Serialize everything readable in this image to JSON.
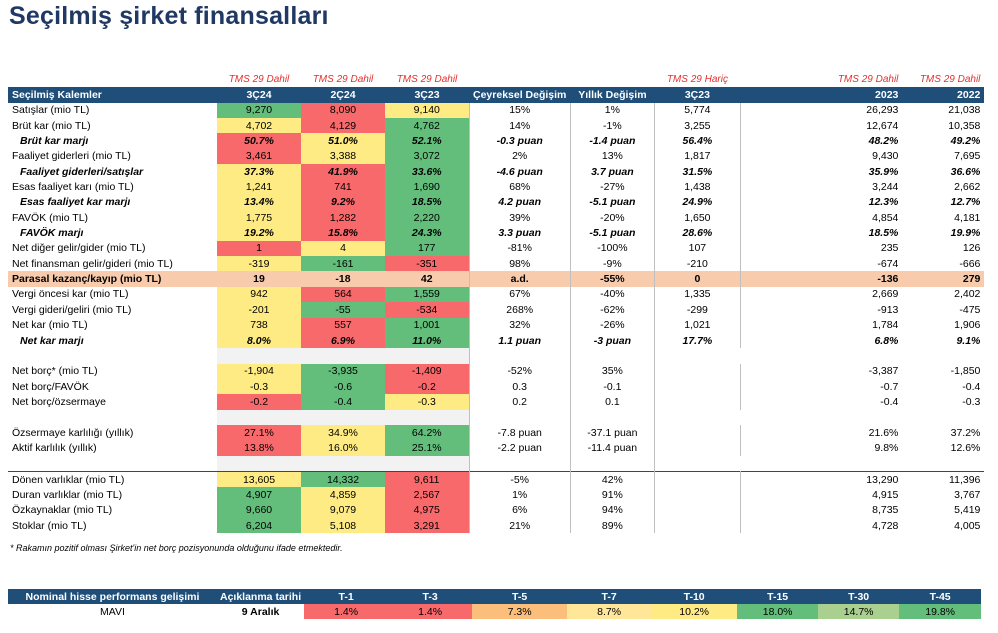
{
  "title": "Seçilmiş şirket finansalları",
  "tms_labels": {
    "q3_24": "TMS 29 Dahil",
    "q2_24": "TMS 29 Dahil",
    "q3_23": "TMS 29 Dahil",
    "q3_23_haric": "TMS 29 Hariç",
    "y2023": "TMS 29 Dahil",
    "y2022": "TMS 29 Dahil"
  },
  "headers": [
    "Seçilmiş Kalemler",
    "3Ç24",
    "2Ç24",
    "3Ç23",
    "Çeyreksel Değişim",
    "Yıllık Değişim",
    "3Ç23",
    "2023",
    "2022"
  ],
  "rows": [
    {
      "label": "Satışlar (mio TL)",
      "v": [
        "9,270",
        "8,090",
        "9,140"
      ],
      "cls": [
        "g",
        "r",
        "y"
      ],
      "cd": "15%",
      "yd": "1%",
      "h": "5,774",
      "y23": "26,293",
      "y22": "21,038"
    },
    {
      "label": "Brüt kar (mio TL)",
      "v": [
        "4,702",
        "4,129",
        "4,762"
      ],
      "cls": [
        "y",
        "r",
        "g"
      ],
      "cd": "14%",
      "yd": "-1%",
      "h": "3,255",
      "y23": "12,674",
      "y22": "10,358"
    },
    {
      "label": "Brüt kar marjı",
      "v": [
        "50.7%",
        "51.0%",
        "52.1%"
      ],
      "cls": [
        "r",
        "y",
        "g"
      ],
      "cd": "-0.3 puan",
      "yd": "-1.4 puan",
      "h": "56.4%",
      "y23": "48.2%",
      "y22": "49.2%",
      "style": "bi"
    },
    {
      "label": "Faaliyet giderleri (mio TL)",
      "v": [
        "3,461",
        "3,388",
        "3,072"
      ],
      "cls": [
        "r",
        "y",
        "g"
      ],
      "cd": "2%",
      "yd": "13%",
      "h": "1,817",
      "y23": "9,430",
      "y22": "7,695"
    },
    {
      "label": "Faaliyet giderleri/satışlar",
      "v": [
        "37.3%",
        "41.9%",
        "33.6%"
      ],
      "cls": [
        "y",
        "r",
        "g"
      ],
      "cd": "-4.6 puan",
      "yd": "3.7 puan",
      "h": "31.5%",
      "y23": "35.9%",
      "y22": "36.6%",
      "style": "bi"
    },
    {
      "label": "Esas faaliyet karı (mio TL)",
      "v": [
        "1,241",
        "741",
        "1,690"
      ],
      "cls": [
        "y",
        "r",
        "g"
      ],
      "cd": "68%",
      "yd": "-27%",
      "h": "1,438",
      "y23": "3,244",
      "y22": "2,662"
    },
    {
      "label": "Esas faaliyet kar marjı",
      "v": [
        "13.4%",
        "9.2%",
        "18.5%"
      ],
      "cls": [
        "y",
        "r",
        "g"
      ],
      "cd": "4.2 puan",
      "yd": "-5.1 puan",
      "h": "24.9%",
      "y23": "12.3%",
      "y22": "12.7%",
      "style": "bi"
    },
    {
      "label": "FAVÖK (mio TL)",
      "v": [
        "1,775",
        "1,282",
        "2,220"
      ],
      "cls": [
        "y",
        "r",
        "g"
      ],
      "cd": "39%",
      "yd": "-20%",
      "h": "1,650",
      "y23": "4,854",
      "y22": "4,181"
    },
    {
      "label": "FAVÖK marjı",
      "v": [
        "19.2%",
        "15.8%",
        "24.3%"
      ],
      "cls": [
        "y",
        "r",
        "g"
      ],
      "cd": "3.3 puan",
      "yd": "-5.1 puan",
      "h": "28.6%",
      "y23": "18.5%",
      "y22": "19.9%",
      "style": "bi"
    },
    {
      "label": "Net diğer gelir/gider (mio TL)",
      "v": [
        "1",
        "4",
        "177"
      ],
      "cls": [
        "r",
        "y",
        "g"
      ],
      "cd": "-81%",
      "yd": "-100%",
      "h": "107",
      "y23": "235",
      "y22": "126"
    },
    {
      "label": "Net finansman gelir/gideri (mio TL)",
      "v": [
        "-319",
        "-161",
        "-351"
      ],
      "cls": [
        "y",
        "g",
        "r"
      ],
      "cd": "98%",
      "yd": "-9%",
      "h": "-210",
      "y23": "-674",
      "y22": "-666"
    },
    {
      "label": "Parasal kazanç/kayıp (mio TL)",
      "v": [
        "19",
        "-18",
        "42"
      ],
      "cls": [
        "y",
        "r",
        "g"
      ],
      "cd": "a.d.",
      "yd": "-55%",
      "h": "0",
      "y23": "-136",
      "y22": "279",
      "style": "hl"
    },
    {
      "label": "Vergi öncesi kar (mio TL)",
      "v": [
        "942",
        "564",
        "1,559"
      ],
      "cls": [
        "y",
        "r",
        "g"
      ],
      "cd": "67%",
      "yd": "-40%",
      "h": "1,335",
      "y23": "2,669",
      "y22": "2,402"
    },
    {
      "label": "Vergi gideri/geliri (mio TL)",
      "v": [
        "-201",
        "-55",
        "-534"
      ],
      "cls": [
        "y",
        "g",
        "r"
      ],
      "cd": "268%",
      "yd": "-62%",
      "h": "-299",
      "y23": "-913",
      "y22": "-475"
    },
    {
      "label": "Net kar (mio TL)",
      "v": [
        "738",
        "557",
        "1,001"
      ],
      "cls": [
        "y",
        "r",
        "g"
      ],
      "cd": "32%",
      "yd": "-26%",
      "h": "1,021",
      "y23": "1,784",
      "y22": "1,906"
    },
    {
      "label": "Net kar marjı",
      "v": [
        "8.0%",
        "6.9%",
        "11.0%"
      ],
      "cls": [
        "y",
        "r",
        "g"
      ],
      "cd": "1.1 puan",
      "yd": "-3 puan",
      "h": "17.7%",
      "y23": "6.8%",
      "y22": "9.1%",
      "style": "bi"
    },
    {
      "blank": true
    },
    {
      "label": "Net borç* (mio TL)",
      "v": [
        "-1,904",
        "-3,935",
        "-1,409"
      ],
      "cls": [
        "y",
        "g",
        "r"
      ],
      "cd": "-52%",
      "yd": "35%",
      "h": "",
      "y23": "-3,387",
      "y22": "-1,850"
    },
    {
      "label": "Net borç/FAVÖK",
      "v": [
        "-0.3",
        "-0.6",
        "-0.2"
      ],
      "cls": [
        "y",
        "g",
        "r"
      ],
      "cd": "0.3",
      "yd": "-0.1",
      "h": "",
      "y23": "-0.7",
      "y22": "-0.4"
    },
    {
      "label": "Net borç/özsermaye",
      "v": [
        "-0.2",
        "-0.4",
        "-0.3"
      ],
      "cls": [
        "r",
        "g",
        "y"
      ],
      "cd": "0.2",
      "yd": "0.1",
      "h": "",
      "y23": "-0.4",
      "y22": "-0.3"
    },
    {
      "blank": true
    },
    {
      "label": "Özsermaye karlılığı (yıllık)",
      "v": [
        "27.1%",
        "34.9%",
        "64.2%"
      ],
      "cls": [
        "r",
        "y",
        "g"
      ],
      "cd": "-7.8 puan",
      "yd": "-37.1 puan",
      "h": "",
      "y23": "21.6%",
      "y22": "37.2%"
    },
    {
      "label": "Aktif karlılık (yıllık)",
      "v": [
        "13.8%",
        "16.0%",
        "25.1%"
      ],
      "cls": [
        "r",
        "y",
        "g"
      ],
      "cd": "-2.2 puan",
      "yd": "-11.4 puan",
      "h": "",
      "y23": "9.8%",
      "y22": "12.6%"
    },
    {
      "blank": true
    },
    {
      "label": "Dönen varlıklar (mio TL)",
      "v": [
        "13,605",
        "14,332",
        "9,611"
      ],
      "cls": [
        "y",
        "g",
        "r"
      ],
      "cd": "-5%",
      "yd": "42%",
      "h": "",
      "y23": "13,290",
      "y22": "11,396",
      "style": "bar"
    },
    {
      "label": "Duran varlıklar (mio TL)",
      "v": [
        "4,907",
        "4,859",
        "2,567"
      ],
      "cls": [
        "g",
        "y",
        "r"
      ],
      "cd": "1%",
      "yd": "91%",
      "h": "",
      "y23": "4,915",
      "y22": "3,767"
    },
    {
      "label": "Özkaynaklar (mio TL)",
      "v": [
        "9,660",
        "9,079",
        "4,975"
      ],
      "cls": [
        "g",
        "y",
        "r"
      ],
      "cd": "6%",
      "yd": "94%",
      "h": "",
      "y23": "8,735",
      "y22": "5,419"
    },
    {
      "label": "Stoklar (mio TL)",
      "v": [
        "6,204",
        "5,108",
        "3,291"
      ],
      "cls": [
        "g",
        "y",
        "r"
      ],
      "cd": "21%",
      "yd": "89%",
      "h": "",
      "y23": "4,728",
      "y22": "4,005"
    }
  ],
  "note": "* Rakamın pozitif olması Şirket'in net borç pozisyonunda olduğunu ifade etmektedir.",
  "perf": {
    "headers": [
      "Nominal hisse performans gelişimi",
      "Açıklanma tarihi",
      "T-1",
      "T-3",
      "T-5",
      "T-7",
      "T-10",
      "T-15",
      "T-30",
      "T-45"
    ],
    "ticker": "MAVI",
    "date": "9 Aralık",
    "values": [
      "1.4%",
      "1.4%",
      "7.3%",
      "8.7%",
      "10.2%",
      "18.0%",
      "14.7%",
      "19.8%"
    ],
    "cls": [
      "r",
      "r",
      "o",
      "lo",
      "y",
      "g",
      "lg",
      "g"
    ]
  }
}
